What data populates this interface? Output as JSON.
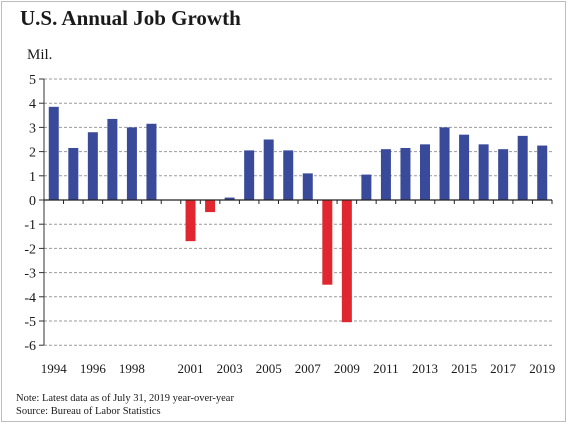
{
  "chart_data": {
    "type": "bar",
    "title": "U.S. Annual Job Growth",
    "ylabel": "Mil.",
    "xlabel": "",
    "ylim": [
      -6,
      5
    ],
    "yticks": [
      5,
      4,
      3,
      2,
      1,
      0,
      -1,
      -2,
      -3,
      -4,
      -5,
      -6
    ],
    "grid": true,
    "categories": [
      "1994",
      "1995",
      "1996",
      "1997",
      "1998",
      "1999",
      "2000",
      "2001",
      "2002",
      "2003",
      "2004",
      "2005",
      "2006",
      "2007",
      "2008",
      "2009",
      "2010",
      "2011",
      "2012",
      "2013",
      "2014",
      "2015",
      "2016",
      "2017",
      "2018",
      "2019"
    ],
    "x_tick_labels": [
      "1994",
      "1996",
      "1998",
      "2001",
      "2003",
      "2005",
      "2007",
      "2009",
      "2011",
      "2013",
      "2015",
      "2017",
      "2019"
    ],
    "values": [
      3.85,
      2.15,
      2.8,
      3.35,
      3.0,
      3.15,
      0.0,
      -1.7,
      -0.5,
      0.1,
      2.05,
      2.5,
      2.05,
      1.1,
      -3.5,
      -5.05,
      1.05,
      2.1,
      2.15,
      2.3,
      3.0,
      2.7,
      2.3,
      2.1,
      2.65,
      2.25
    ],
    "colors": {
      "positive": "#3a4a9a",
      "negative": "#e0272f"
    }
  },
  "footer": {
    "note": "Note: Latest data as of July 31, 2019 year-over-year",
    "source": "Source: Bureau of Labor Statistics"
  }
}
